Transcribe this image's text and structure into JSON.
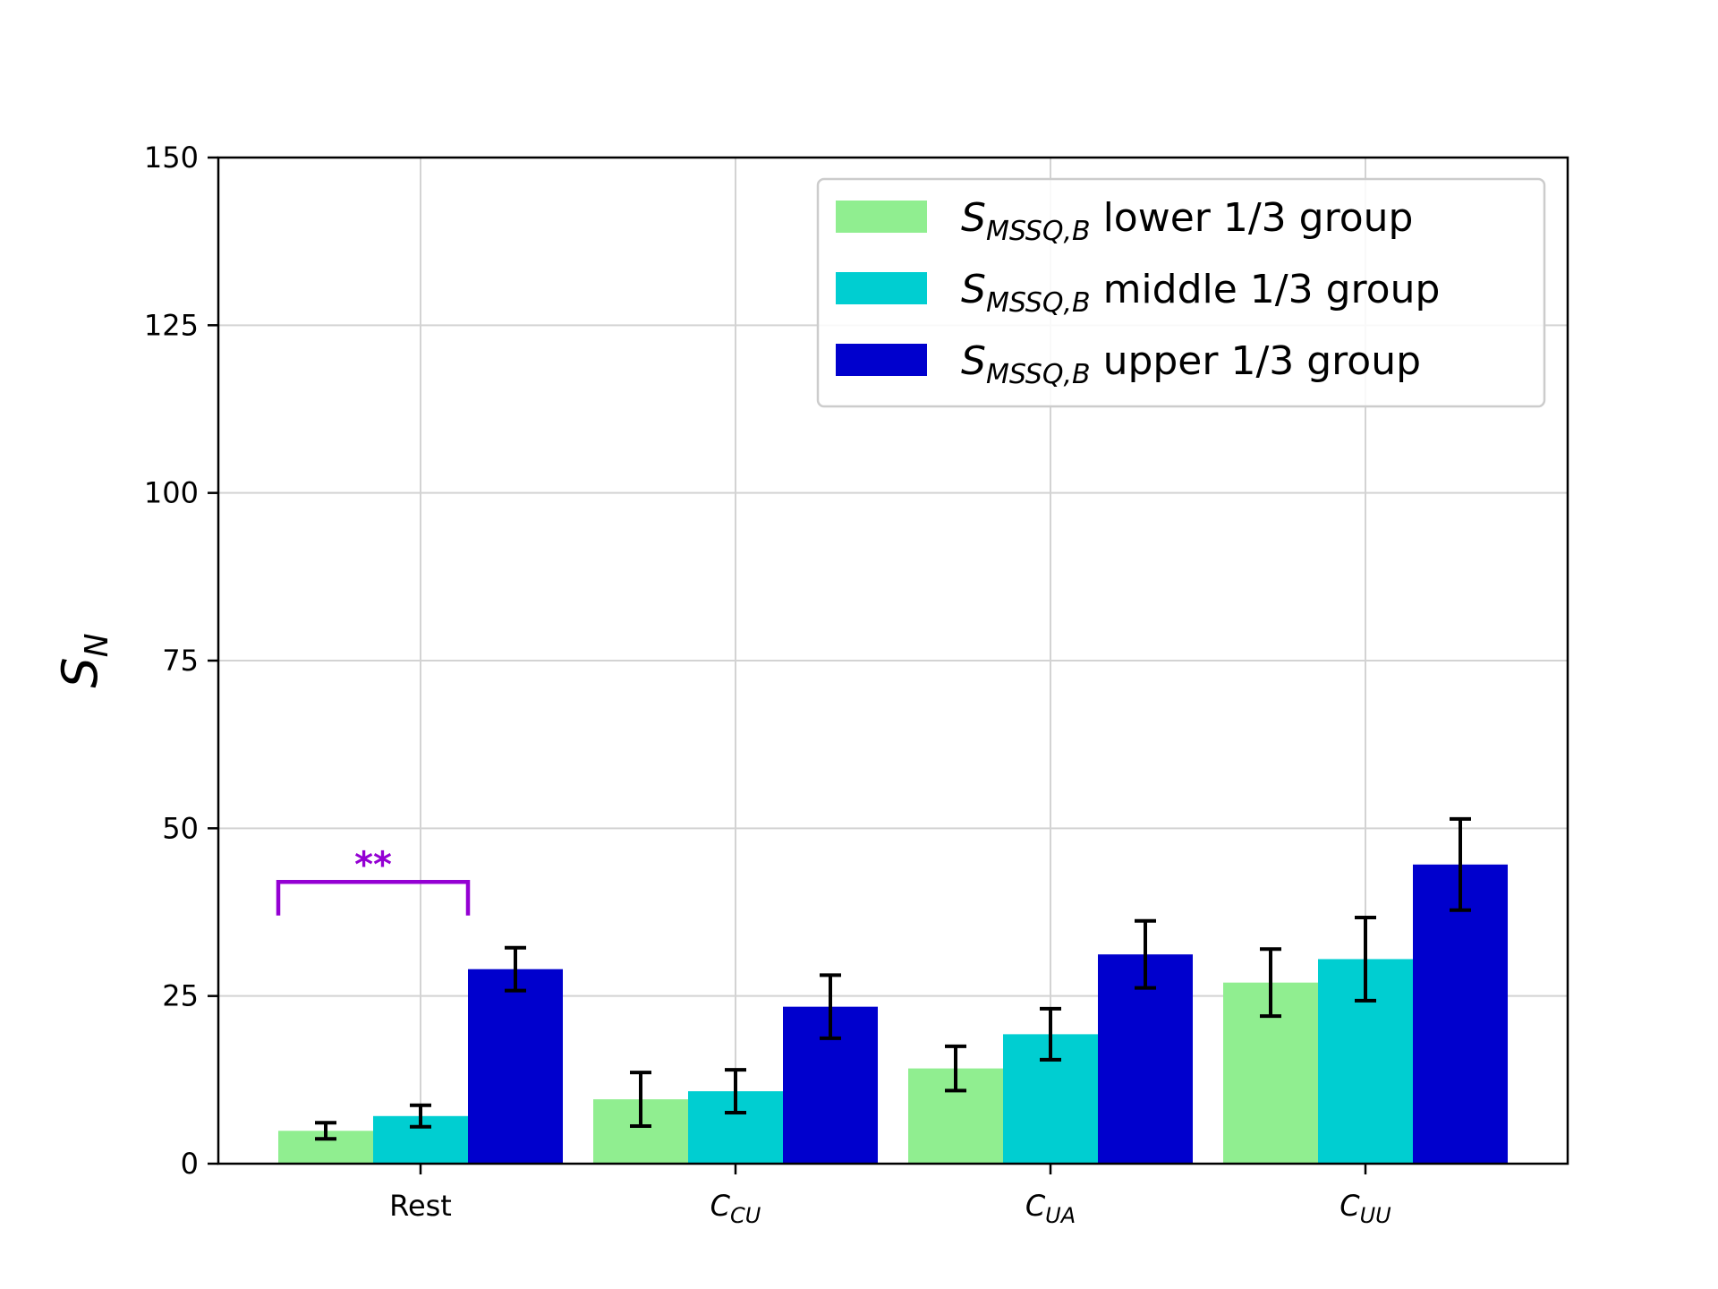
{
  "chart_data": {
    "type": "bar",
    "categories": [
      {
        "main": "Rest",
        "sub": ""
      },
      {
        "main": "C",
        "sub": "CU"
      },
      {
        "main": "C",
        "sub": "UA"
      },
      {
        "main": "C",
        "sub": "UU"
      }
    ],
    "series": [
      {
        "name": {
          "main": "S",
          "sub": "MSSQ,B",
          "rest": " lower 1/3 group"
        },
        "color": "#90ee90",
        "values": [
          4.9,
          9.6,
          14.2,
          27.0
        ],
        "errors": [
          1.2,
          4.0,
          3.3,
          5.0
        ]
      },
      {
        "name": {
          "main": "S",
          "sub": "MSSQ,B",
          "rest": " middle 1/3 group"
        },
        "color": "#00ced1",
        "values": [
          7.1,
          10.8,
          19.3,
          30.5
        ],
        "errors": [
          1.6,
          3.2,
          3.8,
          6.2
        ]
      },
      {
        "name": {
          "main": "S",
          "sub": "MSSQ,B",
          "rest": " upper 1/3 group"
        },
        "color": "#0000cd",
        "values": [
          29.0,
          23.4,
          31.2,
          44.6
        ],
        "errors": [
          3.2,
          4.7,
          5.0,
          6.8
        ]
      }
    ],
    "ylabel": {
      "main": "S",
      "sub": "N"
    },
    "xlabel": "",
    "ylim": [
      0,
      150
    ],
    "yticks": [
      "0",
      "25",
      "50",
      "75",
      "100",
      "125",
      "150"
    ],
    "grid": true,
    "legend_position": "top-right",
    "annotation": {
      "text": "**",
      "category_index": 0,
      "from_series": 0,
      "to_series": 2,
      "bracket_top": 42,
      "bracket_bottom": 37,
      "color": "#9400d3"
    }
  }
}
